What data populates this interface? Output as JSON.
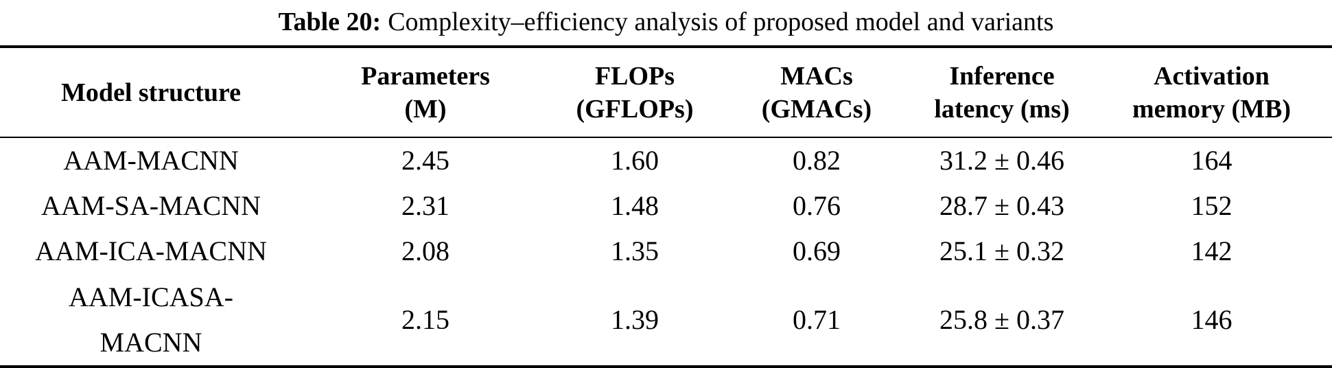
{
  "caption": {
    "label": "Table 20:",
    "text": "Complexity–efficiency analysis of proposed model and variants"
  },
  "table": {
    "columns": [
      {
        "name": "model-structure",
        "label_lines": [
          "Model structure"
        ]
      },
      {
        "name": "parameters",
        "label_lines": [
          "Parameters",
          "(M)"
        ]
      },
      {
        "name": "flops",
        "label_lines": [
          "FLOPs",
          "(GFLOPs)"
        ]
      },
      {
        "name": "macs",
        "label_lines": [
          "MACs",
          "(GMACs)"
        ]
      },
      {
        "name": "inference-latency",
        "label_lines": [
          "Inference",
          "latency (ms)"
        ]
      },
      {
        "name": "activation-memory",
        "label_lines": [
          "Activation",
          "memory (MB)"
        ]
      }
    ],
    "rows": [
      [
        "AAM-MACNN",
        "2.45",
        "1.60",
        "0.82",
        "31.2 ± 0.46",
        "164"
      ],
      [
        "AAM-SA-MACNN",
        "2.31",
        "1.48",
        "0.76",
        "28.7 ± 0.43",
        "152"
      ],
      [
        "AAM-ICA-MACNN",
        "2.08",
        "1.35",
        "0.69",
        "25.1 ± 0.32",
        "142"
      ],
      [
        "AAM-ICASA-MACNN",
        "2.15",
        "1.39",
        "0.71",
        "25.8 ± 0.37",
        "146"
      ]
    ]
  },
  "colors": {
    "text": "#000000",
    "background": "#ffffff",
    "rule": "#000000"
  }
}
